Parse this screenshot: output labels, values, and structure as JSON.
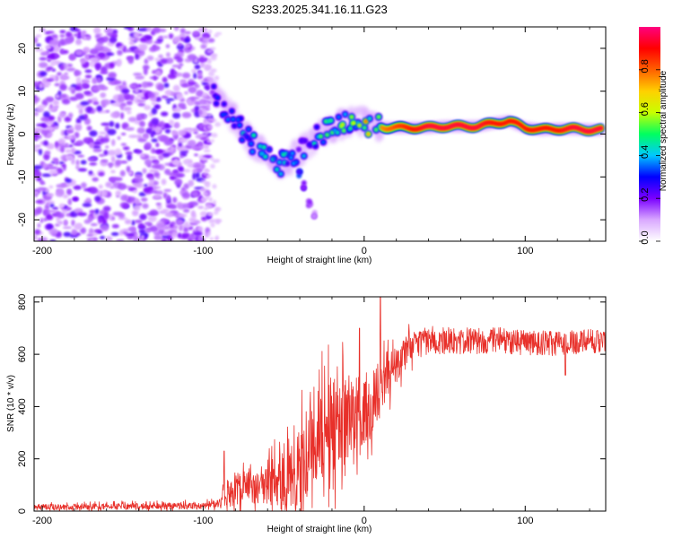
{
  "title": "S233.2025.341.16.11.G23",
  "chart_data": [
    {
      "type": "heatmap",
      "name": "spectrogram",
      "xlabel": "Height of straight line (km)",
      "ylabel": "Frequency (Hz)",
      "xlim": [
        -205,
        150
      ],
      "ylim": [
        -25,
        25
      ],
      "x_ticks": [
        -200,
        -100,
        0,
        100
      ],
      "y_ticks": [
        -20,
        -10,
        0,
        10,
        20
      ],
      "colorbar": {
        "label": "Normalized spectral amplitude",
        "range": [
          0,
          1
        ],
        "ticks": [
          0,
          0.2,
          0.4,
          0.6,
          0.8
        ],
        "tick_labels": [
          "0.0",
          "0.2",
          "0.4",
          "0.6",
          "0.8"
        ],
        "colors": [
          "#ffffff",
          "#d9a8ff",
          "#7a00ff",
          "#0000ff",
          "#00c8ff",
          "#00ff60",
          "#c8ff00",
          "#ffd000",
          "#ff6000",
          "#ff0000",
          "#ff0080"
        ]
      },
      "signal_track": [
        {
          "x": -95,
          "y": 10,
          "amp": 0.25
        },
        {
          "x": -88,
          "y": 7,
          "amp": 0.3
        },
        {
          "x": -82,
          "y": 4,
          "amp": 0.35
        },
        {
          "x": -76,
          "y": 1,
          "amp": 0.4
        },
        {
          "x": -70,
          "y": -2,
          "amp": 0.45
        },
        {
          "x": -64,
          "y": -4,
          "amp": 0.45
        },
        {
          "x": -58,
          "y": -6,
          "amp": 0.4
        },
        {
          "x": -52,
          "y": -7,
          "amp": 0.4
        },
        {
          "x": -46,
          "y": -6,
          "amp": 0.45
        },
        {
          "x": -40,
          "y": -4,
          "amp": 0.35
        },
        {
          "x": -34,
          "y": -2,
          "amp": 0.4
        },
        {
          "x": -28,
          "y": 0,
          "amp": 0.45
        },
        {
          "x": -22,
          "y": 1,
          "amp": 0.55
        },
        {
          "x": -16,
          "y": 2,
          "amp": 0.6
        },
        {
          "x": -10,
          "y": 2.5,
          "amp": 0.6
        },
        {
          "x": -4,
          "y": 3,
          "amp": 0.6
        },
        {
          "x": 2,
          "y": 2.5,
          "amp": 0.7
        },
        {
          "x": 8,
          "y": 2,
          "amp": 0.75
        },
        {
          "x": 14,
          "y": 1.5,
          "amp": 0.8
        },
        {
          "x": 20,
          "y": 1.5,
          "amp": 0.85
        },
        {
          "x": 30,
          "y": 1.5,
          "amp": 0.9
        },
        {
          "x": 40,
          "y": 1.5,
          "amp": 0.95
        },
        {
          "x": 50,
          "y": 1.8,
          "amp": 0.95
        },
        {
          "x": 60,
          "y": 1.8,
          "amp": 0.95
        },
        {
          "x": 70,
          "y": 1.8,
          "amp": 0.95
        },
        {
          "x": 80,
          "y": 2.5,
          "amp": 0.9
        },
        {
          "x": 90,
          "y": 3,
          "amp": 0.9
        },
        {
          "x": 100,
          "y": 1.5,
          "amp": 0.9
        },
        {
          "x": 110,
          "y": 1,
          "amp": 0.9
        },
        {
          "x": 120,
          "y": 1.2,
          "amp": 0.9
        },
        {
          "x": 130,
          "y": 1.2,
          "amp": 0.95
        },
        {
          "x": 140,
          "y": 1,
          "amp": 0.95
        },
        {
          "x": 148,
          "y": 1,
          "amp": 0.95
        }
      ],
      "branch_track": [
        {
          "x": -40,
          "y": -9,
          "amp": 0.3
        },
        {
          "x": -37,
          "y": -12,
          "amp": 0.25
        },
        {
          "x": -34,
          "y": -16,
          "amp": 0.2
        },
        {
          "x": -31,
          "y": -19,
          "amp": 0.15
        }
      ],
      "noise_region_x": [
        -205,
        -95
      ]
    },
    {
      "type": "line",
      "name": "snr",
      "xlabel": "Height of straight line (km)",
      "ylabel": "SNR (10 * v/v)",
      "xlim": [
        -205,
        150
      ],
      "ylim": [
        0,
        820
      ],
      "x_ticks": [
        -200,
        -100,
        0,
        100
      ],
      "y_ticks": [
        0,
        200,
        400,
        600,
        800
      ],
      "color": "#e8302a",
      "series": [
        {
          "name": "SNR",
          "x": [
            -205,
            -150,
            -100,
            -90,
            -85,
            -75,
            -60,
            -50,
            -40,
            -35,
            -30,
            -25,
            -20,
            -15,
            -10,
            -5,
            0,
            5,
            10,
            15,
            20,
            25,
            30,
            40,
            60,
            80,
            100,
            120,
            140,
            150
          ],
          "values": [
            15,
            18,
            20,
            30,
            70,
            90,
            110,
            120,
            160,
            220,
            280,
            310,
            320,
            330,
            360,
            380,
            400,
            430,
            470,
            520,
            560,
            600,
            630,
            655,
            650,
            655,
            645,
            640,
            650,
            650
          ]
        }
      ],
      "noise_amp": [
        [
          -205,
          12
        ],
        [
          -90,
          15
        ],
        [
          -85,
          60
        ],
        [
          -60,
          90
        ],
        [
          -40,
          180
        ],
        [
          -20,
          220
        ],
        [
          0,
          160
        ],
        [
          10,
          120
        ],
        [
          20,
          80
        ],
        [
          30,
          60
        ],
        [
          150,
          50
        ]
      ],
      "spikes": [
        {
          "x": -87,
          "y": 230
        },
        {
          "x": -3,
          "y": 700
        },
        {
          "x": 10,
          "y": 820
        },
        {
          "x": 125,
          "y": 520
        }
      ]
    }
  ]
}
